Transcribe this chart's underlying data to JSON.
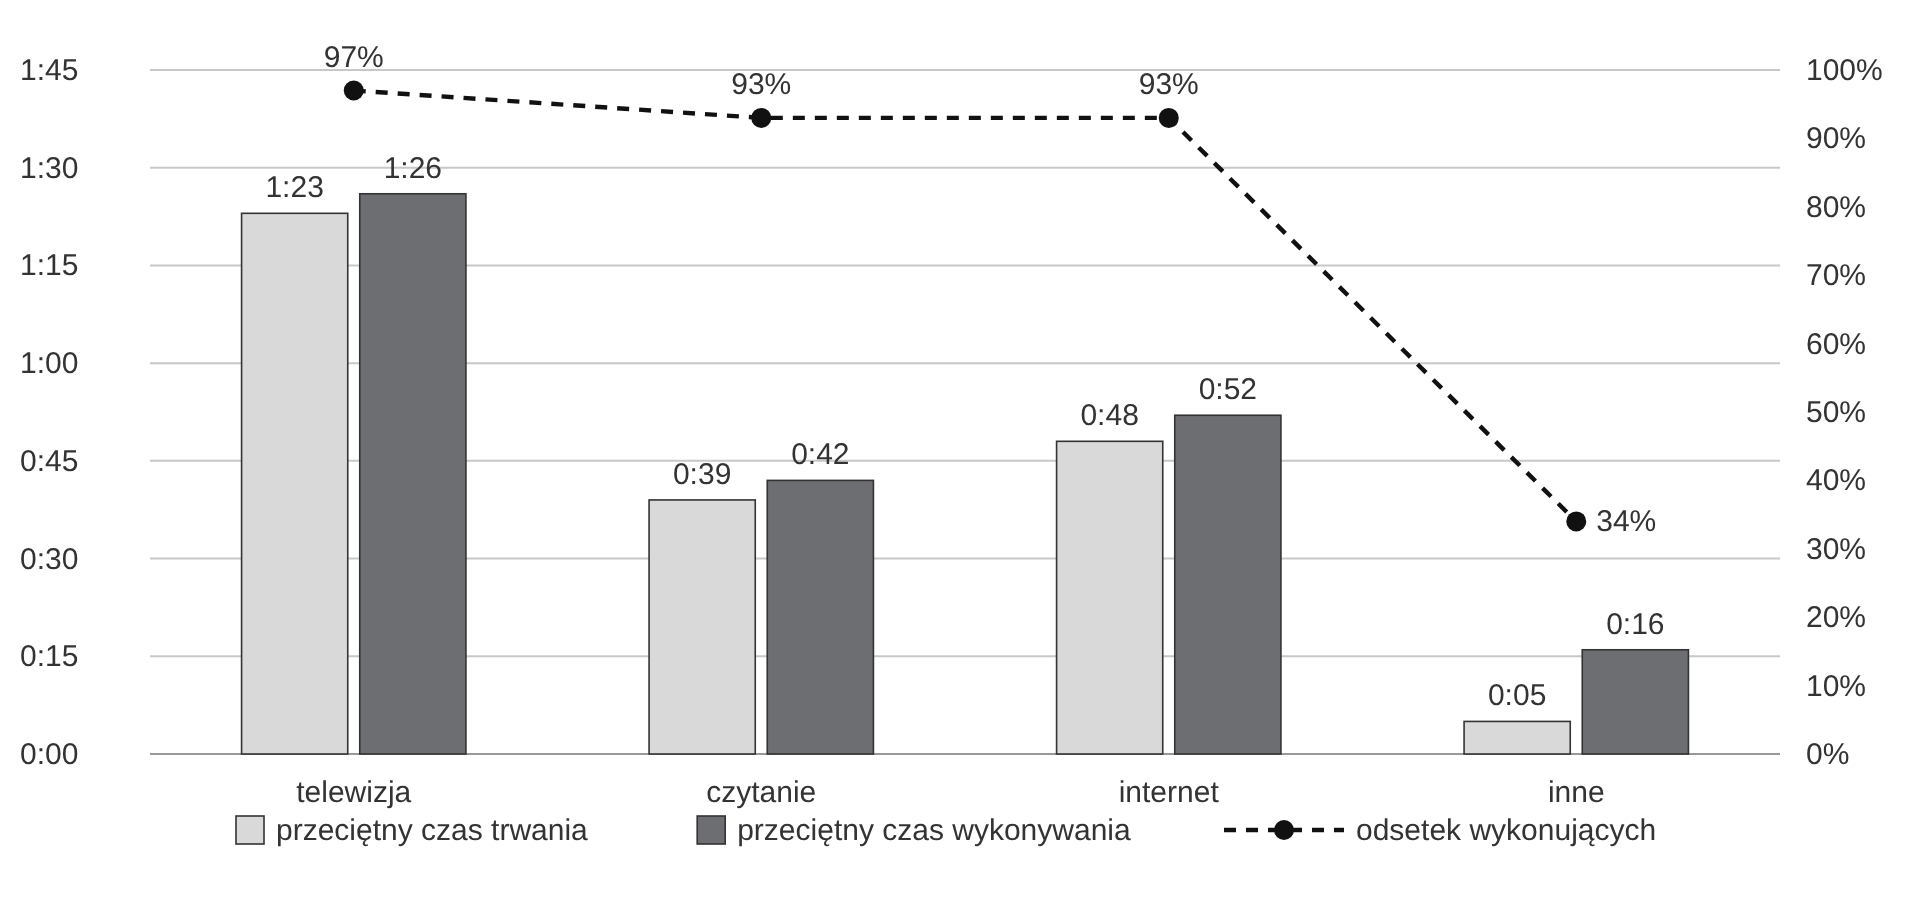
{
  "chart_data": {
    "type": "bar",
    "categories": [
      "telewizja",
      "czytanie",
      "internet",
      "inne"
    ],
    "series": [
      {
        "name": "przeciętny czas trwania",
        "color": "#d9d9d9",
        "values": [
          83,
          39,
          48,
          5
        ],
        "value_labels": [
          "1:23",
          "0:39",
          "0:48",
          "0:05"
        ]
      },
      {
        "name": "przeciętny czas wykonywania",
        "color": "#6d6e71",
        "values": [
          86,
          42,
          52,
          16
        ],
        "value_labels": [
          "1:26",
          "0:42",
          "0:52",
          "0:16"
        ]
      },
      {
        "name": "odsetek wykonujących",
        "type": "line",
        "axis": "y2",
        "color": "#111111",
        "line_style": "dashed",
        "marker": "circle",
        "values": [
          97,
          93,
          93,
          34
        ],
        "value_labels": [
          "97%",
          "93%",
          "93%",
          "34%"
        ]
      }
    ],
    "ylim": [
      0,
      105
    ],
    "yticks": [
      {
        "value": 0,
        "label": "0:00"
      },
      {
        "value": 15,
        "label": "0:15"
      },
      {
        "value": 30,
        "label": "0:30"
      },
      {
        "value": 45,
        "label": "0:45"
      },
      {
        "value": 60,
        "label": "1:00"
      },
      {
        "value": 75,
        "label": "1:15"
      },
      {
        "value": 90,
        "label": "1:30"
      },
      {
        "value": 105,
        "label": "1:45"
      }
    ],
    "y2lim": [
      0,
      100
    ],
    "y2ticks": [
      {
        "value": 0,
        "label": "0%"
      },
      {
        "value": 10,
        "label": "10%"
      },
      {
        "value": 20,
        "label": "20%"
      },
      {
        "value": 30,
        "label": "30%"
      },
      {
        "value": 40,
        "label": "40%"
      },
      {
        "value": 50,
        "label": "50%"
      },
      {
        "value": 60,
        "label": "60%"
      },
      {
        "value": 70,
        "label": "70%"
      },
      {
        "value": 80,
        "label": "80%"
      },
      {
        "value": 90,
        "label": "90%"
      },
      {
        "value": 100,
        "label": "100%"
      }
    ],
    "grid": "y",
    "legend": "bottom"
  }
}
